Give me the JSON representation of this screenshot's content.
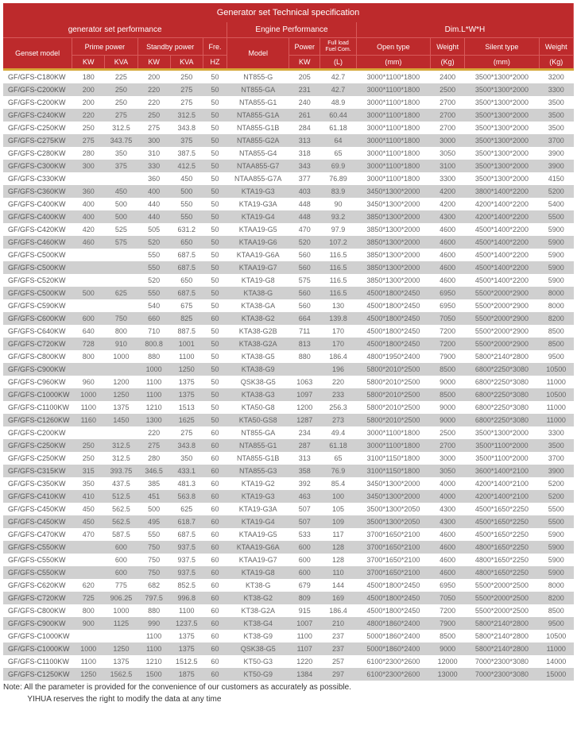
{
  "title": "Generator set Technical specification",
  "sections": {
    "perf": "generator set  performance",
    "engine": "Engine Performance",
    "dim": "Dim.L*W*H"
  },
  "headers": {
    "genset": "Genset model",
    "prime": "Prime power",
    "standby": "Standby power",
    "fre": "Fre.",
    "model": "Model",
    "power": "Power",
    "fuel": "Full load Fuel Com.",
    "open": "Open type",
    "weight": "Weight",
    "silent": "Silent type",
    "kw": "KW",
    "kva": "KVA",
    "hz": "HZ",
    "l": "(L)",
    "mm": "(mm)",
    "kg": "(Kg)"
  },
  "note1": "Note: All the parameter is  provided for the convenience of our customers as accurately as possible.",
  "note2": "           YIHUA reserves the right to modify the data at any time",
  "rows": [
    [
      "GF/GFS-C180KW",
      "180",
      "225",
      "200",
      "250",
      "50",
      "NT855-G",
      "205",
      "42.7",
      "3000*1100*1800",
      "2400",
      "3500*1300*2000",
      "3200"
    ],
    [
      "GF/GFS-C200KW",
      "200",
      "250",
      "220",
      "275",
      "50",
      "NT855-GA",
      "231",
      "42.7",
      "3000*1100*1800",
      "2500",
      "3500*1300*2000",
      "3300"
    ],
    [
      "GF/GFS-C200KW",
      "200",
      "250",
      "220",
      "275",
      "50",
      "NTA855-G1",
      "240",
      "48.9",
      "3000*1100*1800",
      "2700",
      "3500*1300*2000",
      "3500"
    ],
    [
      "GF/GFS-C240KW",
      "220",
      "275",
      "250",
      "312.5",
      "50",
      "NTA855-G1A",
      "261",
      "60.44",
      "3000*1100*1800",
      "2700",
      "3500*1300*2000",
      "3500"
    ],
    [
      "GF/GFS-C250KW",
      "250",
      "312.5",
      "275",
      "343.8",
      "50",
      "NTA855-G1B",
      "284",
      "61.18",
      "3000*1100*1800",
      "2700",
      "3500*1300*2000",
      "3500"
    ],
    [
      "GF/GFS-C275KW",
      "275",
      "343.75",
      "300",
      "375",
      "50",
      "NTA855-G2A",
      "313",
      "64",
      "3000*1100*1800",
      "3000",
      "3500*1300*2000",
      "3700"
    ],
    [
      "GF/GFS-C280KW",
      "280",
      "350",
      "310",
      "387.5",
      "50",
      "NTA855-G4",
      "318",
      "65",
      "3000*1100*1800",
      "3050",
      "3500*1300*2000",
      "3900"
    ],
    [
      "GF/GFS-C300KW",
      "300",
      "375",
      "330",
      "412.5",
      "50",
      "NTAA855-G7",
      "343",
      "69.9",
      "3000*1100*1800",
      "3100",
      "3500*1300*2000",
      "3900"
    ],
    [
      "GF/GFS-C330KW",
      "",
      "",
      "360",
      "450",
      "50",
      "NTAA855-G7A",
      "377",
      "76.89",
      "3000*1100*1800",
      "3300",
      "3500*1300*2000",
      "4150"
    ],
    [
      "GF/GFS-C360KW",
      "360",
      "450",
      "400",
      "500",
      "50",
      "KTA19-G3",
      "403",
      "83.9",
      "3450*1300*2000",
      "4200",
      "3800*1400*2200",
      "5200"
    ],
    [
      "GF/GFS-C400KW",
      "400",
      "500",
      "440",
      "550",
      "50",
      "KTA19-G3A",
      "448",
      "90",
      "3450*1300*2000",
      "4200",
      "4200*1400*2200",
      "5400"
    ],
    [
      "GF/GFS-C400KW",
      "400",
      "500",
      "440",
      "550",
      "50",
      "KTA19-G4",
      "448",
      "93.2",
      "3850*1300*2000",
      "4300",
      "4200*1400*2200",
      "5500"
    ],
    [
      "GF/GFS-C420KW",
      "420",
      "525",
      "505",
      "631.2",
      "50",
      "KTAA19-G5",
      "470",
      "97.9",
      "3850*1300*2000",
      "4600",
      "4500*1400*2200",
      "5900"
    ],
    [
      "GF/GFS-C460KW",
      "460",
      "575",
      "520",
      "650",
      "50",
      "KTAA19-G6",
      "520",
      "107.2",
      "3850*1300*2000",
      "4600",
      "4500*1400*2200",
      "5900"
    ],
    [
      "GF/GFS-C500KW",
      "",
      "",
      "550",
      "687.5",
      "50",
      "KTAA19-G6A",
      "560",
      "116.5",
      "3850*1300*2000",
      "4600",
      "4500*1400*2200",
      "5900"
    ],
    [
      "GF/GFS-C500KW",
      "",
      "",
      "550",
      "687.5",
      "50",
      "KTAA19-G7",
      "560",
      "116.5",
      "3850*1300*2000",
      "4600",
      "4500*1400*2200",
      "5900"
    ],
    [
      "GF/GFS-C520KW",
      "",
      "",
      "520",
      "650",
      "50",
      "KTA19-G8",
      "575",
      "116.5",
      "3850*1300*2000",
      "4600",
      "4500*1400*2200",
      "5900"
    ],
    [
      "GF/GFS-C500KW",
      "500",
      "625",
      "550",
      "687.5",
      "50",
      "KTA38-G",
      "560",
      "116.5",
      "4500*1800*2450",
      "6950",
      "5500*2000*2900",
      "8000"
    ],
    [
      "GF/GFS-C590KW",
      "",
      "",
      "540",
      "675",
      "50",
      "KTA38-GA",
      "560",
      "130",
      "4500*1800*2450",
      "6950",
      "5500*2000*2900",
      "8000"
    ],
    [
      "GF/GFS-C600KW",
      "600",
      "750",
      "660",
      "825",
      "60",
      "KTA38-G2",
      "664",
      "139.8",
      "4500*1800*2450",
      "7050",
      "5500*2000*2900",
      "8200"
    ],
    [
      "GF/GFS-C640KW",
      "640",
      "800",
      "710",
      "887.5",
      "50",
      "KTA38-G2B",
      "711",
      "170",
      "4500*1800*2450",
      "7200",
      "5500*2000*2900",
      "8500"
    ],
    [
      "GF/GFS-C720KW",
      "728",
      "910",
      "800.8",
      "1001",
      "50",
      "KTA38-G2A",
      "813",
      "170",
      "4500*1800*2450",
      "7200",
      "5500*2000*2900",
      "8500"
    ],
    [
      "GF/GFS-C800KW",
      "800",
      "1000",
      "880",
      "1100",
      "50",
      "KTA38-G5",
      "880",
      "186.4",
      "4800*1950*2400",
      "7900",
      "5800*2140*2800",
      "9500"
    ],
    [
      "GF/GFS-C900KW",
      "",
      "",
      "1000",
      "1250",
      "50",
      "KTA38-G9",
      "",
      "196",
      "5800*2010*2500",
      "8500",
      "6800*2250*3080",
      "10500"
    ],
    [
      "GF/GFS-C960KW",
      "960",
      "1200",
      "1100",
      "1375",
      "50",
      "QSK38-G5",
      "1063",
      "220",
      "5800*2010*2500",
      "9000",
      "6800*2250*3080",
      "11000"
    ],
    [
      "GF/GFS-C1000KW",
      "1000",
      "1250",
      "1100",
      "1375",
      "50",
      "KTA38-G3",
      "1097",
      "233",
      "5800*2010*2500",
      "8500",
      "6800*2250*3080",
      "10500"
    ],
    [
      "GF/GFS-C1100KW",
      "1100",
      "1375",
      "1210",
      "1513",
      "50",
      "KTA50-G8",
      "1200",
      "256.3",
      "5800*2010*2500",
      "9000",
      "6800*2250*3080",
      "11000"
    ],
    [
      "GF/GFS-C1260KW",
      "1160",
      "1450",
      "1300",
      "1625",
      "50",
      "KTA50-GS8",
      "1287",
      "273",
      "5800*2010*2500",
      "9000",
      "6800*2250*3080",
      "11000"
    ],
    [
      "GF/GFS-C200KW",
      "",
      "",
      "220",
      "275",
      "60",
      "NT855-GA",
      "234",
      "49.4",
      "3000*1100*1800",
      "2500",
      "3500*1300*2000",
      "3300"
    ],
    [
      "GF/GFS-C250KW",
      "250",
      "312.5",
      "275",
      "343.8",
      "60",
      "NTA855-G1",
      "287",
      "61.18",
      "3000*1100*1800",
      "2700",
      "3500*1100*2000",
      "3500"
    ],
    [
      "GF/GFS-C250KW",
      "250",
      "312.5",
      "280",
      "350",
      "60",
      "NTA855-G1B",
      "313",
      "65",
      "3100*1150*1800",
      "3000",
      "3500*1100*2000",
      "3700"
    ],
    [
      "GF/GFS-C315KW",
      "315",
      "393.75",
      "346.5",
      "433.1",
      "60",
      "NTA855-G3",
      "358",
      "76.9",
      "3100*1150*1800",
      "3050",
      "3600*1400*2100",
      "3900"
    ],
    [
      "GF/GFS-C350KW",
      "350",
      "437.5",
      "385",
      "481.3",
      "60",
      "KTA19-G2",
      "392",
      "85.4",
      "3450*1300*2000",
      "4000",
      "4200*1400*2100",
      "5200"
    ],
    [
      "GF/GFS-C410KW",
      "410",
      "512.5",
      "451",
      "563.8",
      "60",
      "KTA19-G3",
      "463",
      "100",
      "3450*1300*2000",
      "4000",
      "4200*1400*2100",
      "5200"
    ],
    [
      "GF/GFS-C450KW",
      "450",
      "562.5",
      "500",
      "625",
      "60",
      "KTA19-G3A",
      "507",
      "105",
      "3500*1300*2050",
      "4300",
      "4500*1650*2250",
      "5500"
    ],
    [
      "GF/GFS-C450KW",
      "450",
      "562.5",
      "495",
      "618.7",
      "60",
      "KTA19-G4",
      "507",
      "109",
      "3500*1300*2050",
      "4300",
      "4500*1650*2250",
      "5500"
    ],
    [
      "GF/GFS-C470KW",
      "470",
      "587.5",
      "550",
      "687.5",
      "60",
      "KTAA19-G5",
      "533",
      "117",
      "3700*1650*2100",
      "4600",
      "4500*1650*2250",
      "5900"
    ],
    [
      "GF/GFS-C550KW",
      "",
      "600",
      "750",
      "937.5",
      "60",
      "KTAA19-G6A",
      "600",
      "128",
      "3700*1650*2100",
      "4600",
      "4800*1650*2250",
      "5900"
    ],
    [
      "GF/GFS-C550KW",
      "",
      "600",
      "750",
      "937.5",
      "60",
      "KTAA19-G7",
      "600",
      "128",
      "3700*1650*2100",
      "4600",
      "4800*1650*2250",
      "5900"
    ],
    [
      "GF/GFS-C550KW",
      "",
      "600",
      "750",
      "937.5",
      "60",
      "KTA19-G8",
      "600",
      "110",
      "3700*1650*2100",
      "4600",
      "4800*1650*2250",
      "5900"
    ],
    [
      "GF/GFS-C620KW",
      "620",
      "775",
      "682",
      "852.5",
      "60",
      "KT38-G",
      "679",
      "144",
      "4500*1800*2450",
      "6950",
      "5500*2000*2500",
      "8000"
    ],
    [
      "GF/GFS-C720KW",
      "725",
      "906.25",
      "797.5",
      "996.8",
      "60",
      "KT38-G2",
      "809",
      "169",
      "4500*1800*2450",
      "7050",
      "5500*2000*2500",
      "8200"
    ],
    [
      "GF/GFS-C800KW",
      "800",
      "1000",
      "880",
      "1100",
      "60",
      "KT38-G2A",
      "915",
      "186.4",
      "4500*1800*2450",
      "7200",
      "5500*2000*2500",
      "8500"
    ],
    [
      "GF/GFS-C900KW",
      "900",
      "1125",
      "990",
      "1237.5",
      "60",
      "KT38-G4",
      "1007",
      "210",
      "4800*1860*2400",
      "7900",
      "5800*2140*2800",
      "9500"
    ],
    [
      "GF/GFS-C1000KW",
      "",
      "",
      "1100",
      "1375",
      "60",
      "KT38-G9",
      "1100",
      "237",
      "5000*1860*2400",
      "8500",
      "5800*2140*2800",
      "10500"
    ],
    [
      "GF/GFS-C1000KW",
      "1000",
      "1250",
      "1100",
      "1375",
      "60",
      "QSK38-G5",
      "1107",
      "237",
      "5000*1860*2400",
      "9000",
      "5800*2140*2800",
      "11000"
    ],
    [
      "GF/GFS-C1100KW",
      "1100",
      "1375",
      "1210",
      "1512.5",
      "60",
      "KT50-G3",
      "1220",
      "257",
      "6100*2300*2600",
      "12000",
      "7000*2300*3080",
      "14000"
    ],
    [
      "GF/GFS-C1250KW",
      "1250",
      "1562.5",
      "1500",
      "1875",
      "60",
      "KT50-G9",
      "1384",
      "297",
      "6100*2300*2600",
      "13000",
      "7000*2300*3080",
      "15000"
    ]
  ]
}
